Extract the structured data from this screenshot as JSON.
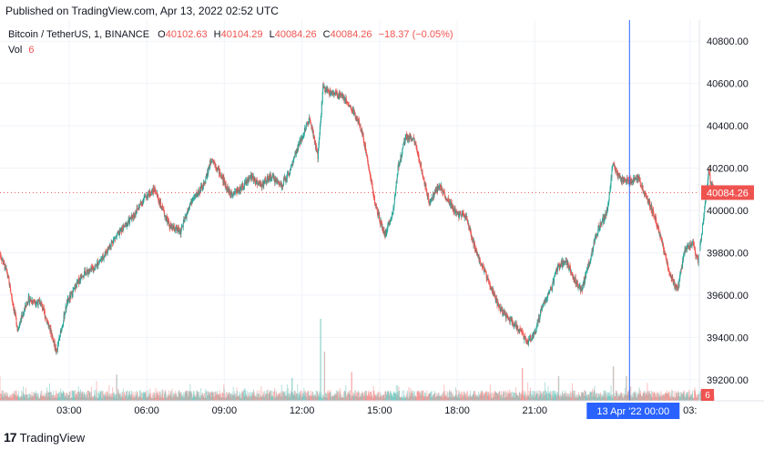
{
  "published_text": "Published on TradingView.com, Apr 13, 2022 02:52 UTC",
  "legend": {
    "symbol": "Bitcoin / TetherUS, 1, BINANCE",
    "o_label": "O",
    "o_value": "40102.63",
    "h_label": "H",
    "h_value": "40104.29",
    "l_label": "L",
    "l_value": "40084.26",
    "c_label": "C",
    "c_value": "40084.26",
    "change": "−18.37 (−0.05%)",
    "vol_label": "Vol",
    "vol_value": "6"
  },
  "footer": {
    "logo_text": "17",
    "brand": "TradingView"
  },
  "colors": {
    "up": "#26a69a",
    "down": "#ef5350",
    "crosshair": "#2962ff",
    "tag": "#ef5350",
    "crosshair_label_bg": "#2962ff"
  },
  "chart_data": {
    "type": "candlestick",
    "symbol": "Bitcoin / TetherUS",
    "interval": "1",
    "exchange": "BINANCE",
    "ylim": [
      39100,
      40900
    ],
    "y_ticks": [
      40800,
      40600,
      40400,
      40200,
      40000,
      39800,
      39600,
      39400,
      39200
    ],
    "y_tick_labels": [
      "40800.00",
      "40600.00",
      "40400.00",
      "40200.00",
      "40000.00",
      "39800.00",
      "39600.00",
      "39400.00",
      "39200.00"
    ],
    "x_ticks": [
      {
        "label": "03:00",
        "t": 2.67
      },
      {
        "label": "06:00",
        "t": 5.67
      },
      {
        "label": "09:00",
        "t": 8.67
      },
      {
        "label": "12:00",
        "t": 11.67
      },
      {
        "label": "15:00",
        "t": 14.67
      },
      {
        "label": "18:00",
        "t": 17.67
      },
      {
        "label": "21:00",
        "t": 20.67
      },
      {
        "label": "03:",
        "t": 26.67
      }
    ],
    "time_range_hours": [
      0,
      27.03
    ],
    "crosshair_t": 24.33,
    "crosshair_label": "13 Apr '22   00:00",
    "last_price": 40084.26,
    "last_price_label": "40084.26",
    "last_volume_label": "6",
    "anchors": [
      [
        0.0,
        39800
      ],
      [
        0.3,
        39700
      ],
      [
        0.7,
        39440
      ],
      [
        1.1,
        39580
      ],
      [
        1.6,
        39560
      ],
      [
        2.0,
        39420
      ],
      [
        2.2,
        39330
      ],
      [
        2.6,
        39560
      ],
      [
        3.2,
        39700
      ],
      [
        3.6,
        39720
      ],
      [
        4.0,
        39780
      ],
      [
        4.4,
        39860
      ],
      [
        4.8,
        39920
      ],
      [
        5.2,
        39980
      ],
      [
        5.6,
        40060
      ],
      [
        6.0,
        40100
      ],
      [
        6.3,
        40000
      ],
      [
        6.6,
        39920
      ],
      [
        7.0,
        39900
      ],
      [
        7.4,
        40040
      ],
      [
        7.9,
        40120
      ],
      [
        8.2,
        40250
      ],
      [
        8.5,
        40180
      ],
      [
        8.9,
        40080
      ],
      [
        9.3,
        40100
      ],
      [
        9.7,
        40160
      ],
      [
        10.1,
        40120
      ],
      [
        10.5,
        40160
      ],
      [
        10.9,
        40120
      ],
      [
        11.2,
        40180
      ],
      [
        11.6,
        40320
      ],
      [
        12.0,
        40440
      ],
      [
        12.3,
        40250
      ],
      [
        12.5,
        40580
      ],
      [
        12.9,
        40550
      ],
      [
        13.2,
        40550
      ],
      [
        13.4,
        40520
      ],
      [
        13.7,
        40460
      ],
      [
        14.0,
        40380
      ],
      [
        14.3,
        40190
      ],
      [
        14.5,
        40040
      ],
      [
        14.7,
        39950
      ],
      [
        14.9,
        39880
      ],
      [
        15.2,
        39990
      ],
      [
        15.4,
        40200
      ],
      [
        15.7,
        40350
      ],
      [
        16.0,
        40340
      ],
      [
        16.3,
        40200
      ],
      [
        16.6,
        40040
      ],
      [
        17.0,
        40120
      ],
      [
        17.3,
        40050
      ],
      [
        17.7,
        39980
      ],
      [
        18.0,
        39980
      ],
      [
        18.3,
        39850
      ],
      [
        18.7,
        39720
      ],
      [
        19.0,
        39640
      ],
      [
        19.3,
        39540
      ],
      [
        19.6,
        39500
      ],
      [
        20.0,
        39450
      ],
      [
        20.4,
        39380
      ],
      [
        20.7,
        39420
      ],
      [
        21.0,
        39560
      ],
      [
        21.3,
        39620
      ],
      [
        21.6,
        39740
      ],
      [
        21.9,
        39760
      ],
      [
        22.2,
        39680
      ],
      [
        22.5,
        39620
      ],
      [
        22.8,
        39760
      ],
      [
        23.1,
        39900
      ],
      [
        23.5,
        40000
      ],
      [
        23.7,
        40220
      ],
      [
        24.0,
        40150
      ],
      [
        24.33,
        40140
      ],
      [
        24.7,
        40150
      ],
      [
        25.0,
        40060
      ],
      [
        25.3,
        39980
      ],
      [
        25.6,
        39850
      ],
      [
        25.9,
        39700
      ],
      [
        26.2,
        39620
      ],
      [
        26.5,
        39820
      ],
      [
        26.8,
        39840
      ],
      [
        27.0,
        39760
      ],
      [
        27.2,
        39950
      ],
      [
        27.4,
        40180
      ],
      [
        27.6,
        40084
      ]
    ],
    "volume_spikes": [
      [
        0.0,
        30
      ],
      [
        4.5,
        32
      ],
      [
        11.3,
        28
      ],
      [
        12.4,
        100
      ],
      [
        12.55,
        60
      ],
      [
        13.6,
        35
      ],
      [
        20.2,
        40
      ],
      [
        21.6,
        30
      ],
      [
        23.7,
        42
      ],
      [
        24.2,
        30
      ]
    ]
  }
}
